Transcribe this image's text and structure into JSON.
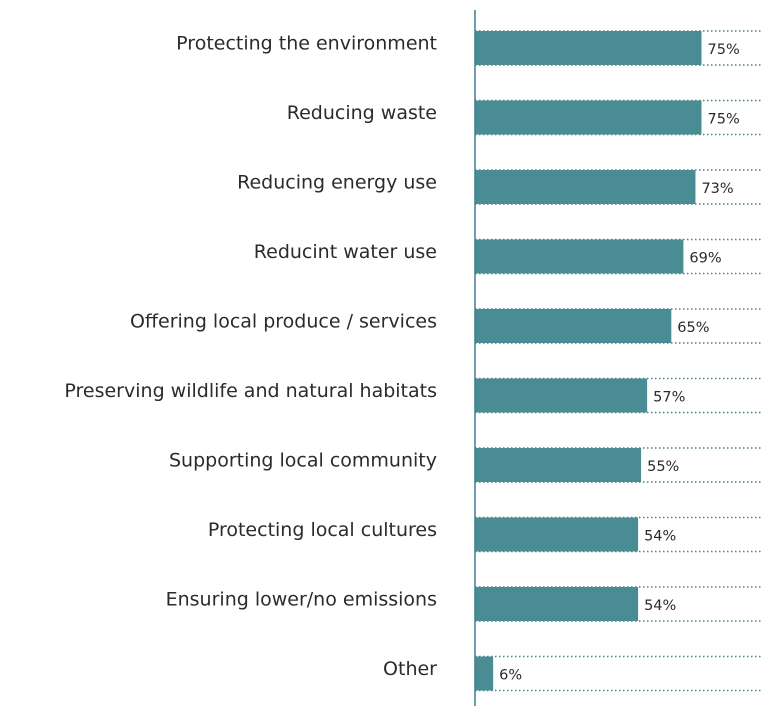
{
  "chart_data": {
    "type": "bar",
    "orientation": "horizontal",
    "categories": [
      "Protecting the environment",
      "Reducing waste",
      "Reducing energy use",
      "Reducint water use",
      "Offering local produce / services",
      "Preserving wildlife and natural habitats",
      "Supporting local community",
      "Protecting local cultures",
      "Ensuring lower/no emissions",
      "Other"
    ],
    "values": [
      75,
      75,
      73,
      69,
      65,
      57,
      55,
      54,
      54,
      6
    ],
    "value_labels": [
      "75%",
      "75%",
      "73%",
      "69%",
      "65%",
      "57%",
      "55%",
      "54%",
      "54%",
      "6%"
    ],
    "unit": "%",
    "xlim": [
      0,
      100
    ],
    "grid": false,
    "legend": "none",
    "title": "",
    "xlabel": "",
    "ylabel": ""
  },
  "colors": {
    "bar": "#4a8c94",
    "dotted_track": "#3f7f8f",
    "axis": "#3f7f8f",
    "text": "#2b2b2b",
    "background": "#ffffff"
  }
}
